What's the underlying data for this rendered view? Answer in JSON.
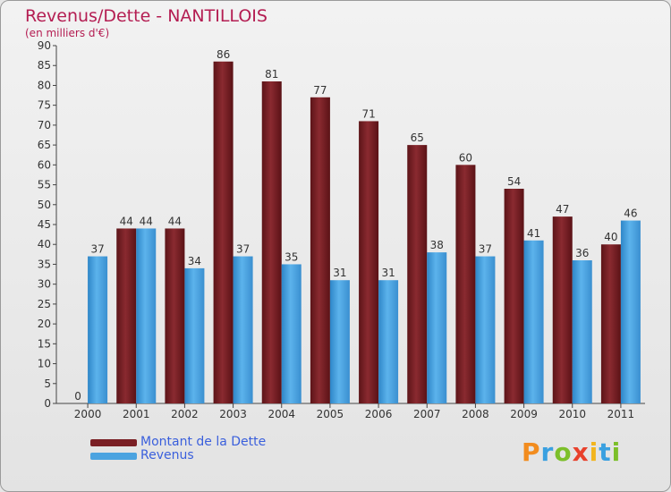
{
  "header": {
    "title": "Revenus/Dette - NANTILLOIS",
    "subtitle": "(en milliers d'€)"
  },
  "legend": {
    "debt_label": "Montant de la Dette",
    "revenue_label": "Revenus"
  },
  "logo": {
    "text": "Proxiti"
  },
  "colors": {
    "debt": "#7a1f24",
    "revenue": "#4ba3e0",
    "title": "#b41d52",
    "legend_text": "#3a5fdc"
  },
  "chart_data": {
    "type": "bar",
    "title": "Revenus/Dette - NANTILLOIS",
    "subtitle": "(en milliers d'€)",
    "categories": [
      "2000",
      "2001",
      "2002",
      "2003",
      "2004",
      "2005",
      "2006",
      "2007",
      "2008",
      "2009",
      "2010",
      "2011"
    ],
    "series": [
      {
        "name": "Montant de la Dette",
        "values": [
          0,
          44,
          44,
          86,
          81,
          77,
          71,
          65,
          60,
          54,
          47,
          40
        ]
      },
      {
        "name": "Revenus",
        "values": [
          37,
          44,
          34,
          37,
          35,
          31,
          31,
          38,
          37,
          41,
          36,
          46
        ]
      }
    ],
    "ylim": [
      0,
      90
    ],
    "ytick_step": 5,
    "grid": false,
    "legend_position": "bottom-left",
    "show_data_labels": true
  }
}
